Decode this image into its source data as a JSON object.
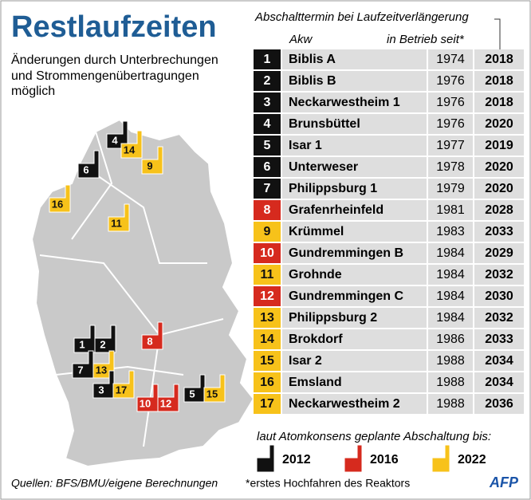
{
  "header": {
    "title": "Restlaufzeiten",
    "subtitle": [
      "Änderungen durch Unterbrechungen",
      "und Strommengenübertragungen",
      "möglich"
    ]
  },
  "table": {
    "caption": "Abschalttermin bei Laufzeitverlängerung",
    "col_name": "Akw",
    "col_start": "in Betrieb seit*",
    "rows": [
      {
        "num": "1",
        "name": "Biblis A",
        "start": "1974",
        "end": "2018",
        "color": "#111111"
      },
      {
        "num": "2",
        "name": "Biblis B",
        "start": "1976",
        "end": "2018",
        "color": "#111111"
      },
      {
        "num": "3",
        "name": "Neckarwestheim 1",
        "start": "1976",
        "end": "2018",
        "color": "#111111"
      },
      {
        "num": "4",
        "name": "Brunsbüttel",
        "start": "1976",
        "end": "2020",
        "color": "#111111"
      },
      {
        "num": "5",
        "name": "Isar 1",
        "start": "1977",
        "end": "2019",
        "color": "#111111"
      },
      {
        "num": "6",
        "name": "Unterweser",
        "start": "1978",
        "end": "2020",
        "color": "#111111"
      },
      {
        "num": "7",
        "name": "Philippsburg 1",
        "start": "1979",
        "end": "2020",
        "color": "#111111"
      },
      {
        "num": "8",
        "name": "Grafenrheinfeld",
        "start": "1981",
        "end": "2028",
        "color": "#d62a1e"
      },
      {
        "num": "9",
        "name": "Krümmel",
        "start": "1983",
        "end": "2033",
        "color": "#f7c21a"
      },
      {
        "num": "10",
        "name": "Gundremmingen B",
        "start": "1984",
        "end": "2029",
        "color": "#d62a1e"
      },
      {
        "num": "11",
        "name": "Grohnde",
        "start": "1984",
        "end": "2032",
        "color": "#f7c21a"
      },
      {
        "num": "12",
        "name": "Gundremmingen C",
        "start": "1984",
        "end": "2030",
        "color": "#d62a1e"
      },
      {
        "num": "13",
        "name": "Philippsburg 2",
        "start": "1984",
        "end": "2032",
        "color": "#f7c21a"
      },
      {
        "num": "14",
        "name": "Brokdorf",
        "start": "1986",
        "end": "2033",
        "color": "#f7c21a"
      },
      {
        "num": "15",
        "name": "Isar 2",
        "start": "1988",
        "end": "2034",
        "color": "#f7c21a"
      },
      {
        "num": "16",
        "name": "Emsland",
        "start": "1988",
        "end": "2034",
        "color": "#f7c21a"
      },
      {
        "num": "17",
        "name": "Neckarwestheim 2",
        "start": "1988",
        "end": "2036",
        "color": "#f7c21a"
      }
    ]
  },
  "map": {
    "markers": [
      {
        "label": "4",
        "color": "#111111"
      },
      {
        "label": "14",
        "color": "#f7c21a"
      },
      {
        "label": "9",
        "color": "#f7c21a"
      },
      {
        "label": "6",
        "color": "#111111"
      },
      {
        "label": "16",
        "color": "#f7c21a"
      },
      {
        "label": "11",
        "color": "#f7c21a"
      },
      {
        "label": "8",
        "color": "#d62a1e"
      },
      {
        "label": "1",
        "color": "#111111"
      },
      {
        "label": "2",
        "color": "#111111"
      },
      {
        "label": "7",
        "color": "#111111"
      },
      {
        "label": "13",
        "color": "#f7c21a"
      },
      {
        "label": "3",
        "color": "#111111"
      },
      {
        "label": "17",
        "color": "#f7c21a"
      },
      {
        "label": "10",
        "color": "#d62a1e"
      },
      {
        "label": "12",
        "color": "#d62a1e"
      },
      {
        "label": "5",
        "color": "#111111"
      },
      {
        "label": "15",
        "color": "#f7c21a"
      }
    ]
  },
  "legend": {
    "title": "laut Atomkonsens geplante Abschaltung bis:",
    "items": [
      {
        "label": "2012",
        "color": "#111111"
      },
      {
        "label": "2016",
        "color": "#d62a1e"
      },
      {
        "label": "2022",
        "color": "#f7c21a"
      }
    ]
  },
  "footer": {
    "source": "Quellen: BFS/BMU/eigene Berechnungen",
    "note": "*erstes Hochfahren des Reaktors",
    "logo": "AFP"
  }
}
